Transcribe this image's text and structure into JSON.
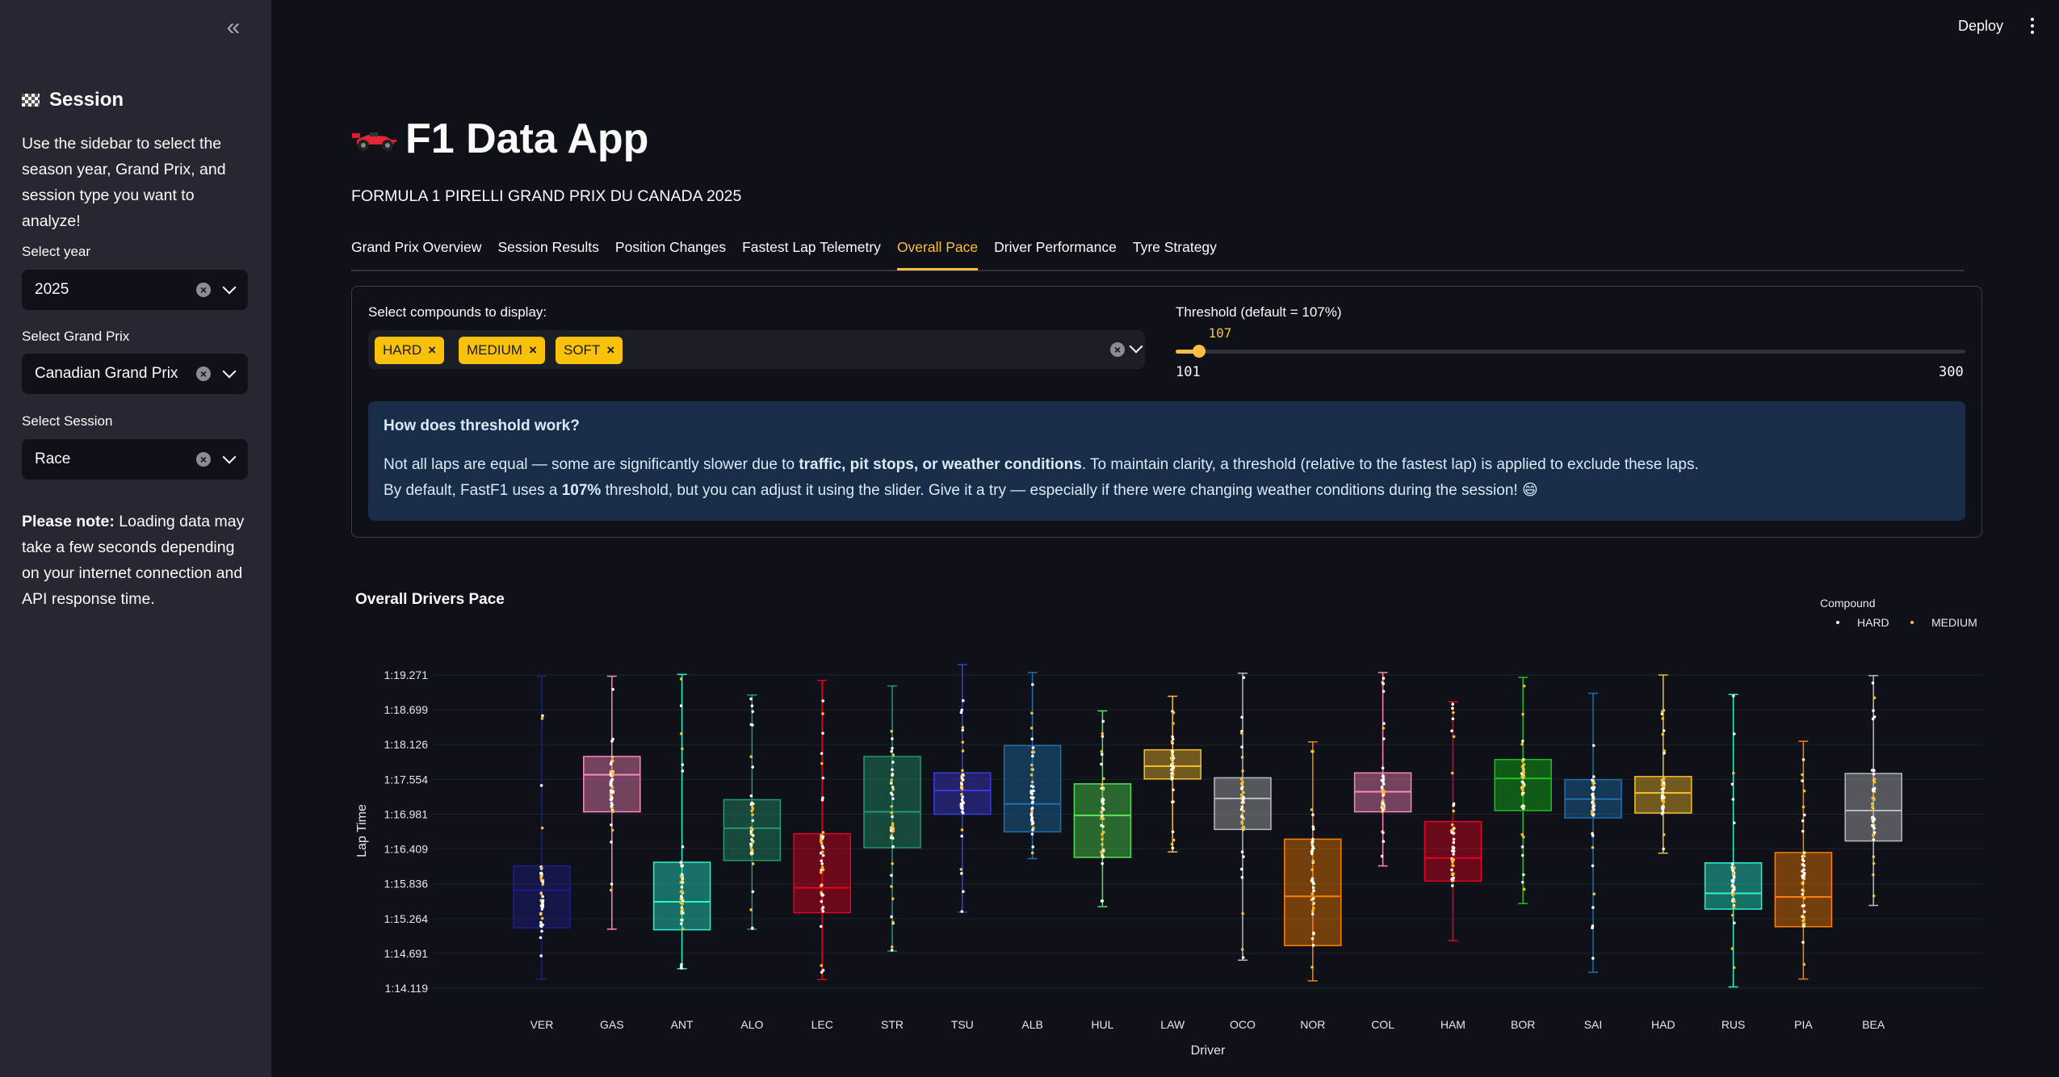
{
  "sidebar": {
    "heading": "Session",
    "intro": "Use the sidebar to select the season year, Grand Prix, and session type you want to analyze!",
    "year": {
      "label": "Select year",
      "value": "2025"
    },
    "grand_prix": {
      "label": "Select Grand Prix",
      "value": "Canadian Grand Prix"
    },
    "session": {
      "label": "Select Session",
      "value": "Race"
    },
    "note_bold": "Please note:",
    "note_text": " Loading data may take a few seconds depending on your internet connection and API response time."
  },
  "topbar": {
    "deploy": "Deploy"
  },
  "main": {
    "title": "F1 Data App",
    "subtitle": "FORMULA 1 PIRELLI GRAND PRIX DU CANADA 2025",
    "tabs": [
      {
        "label": "Grand Prix Overview",
        "active": false
      },
      {
        "label": "Session Results",
        "active": false
      },
      {
        "label": "Position Changes",
        "active": false
      },
      {
        "label": "Fastest Lap Telemetry",
        "active": false
      },
      {
        "label": "Overall Pace",
        "active": true
      },
      {
        "label": "Driver Performance",
        "active": false
      },
      {
        "label": "Tyre Strategy",
        "active": false
      }
    ],
    "compounds": {
      "label": "Select compounds to display:",
      "selected": [
        "HARD",
        "MEDIUM",
        "SOFT"
      ]
    },
    "threshold": {
      "label": "Threshold (default = 107%)",
      "value": 107,
      "min": 101,
      "max": 300,
      "value_text": "107",
      "min_text": "101",
      "max_text": "300"
    },
    "info": {
      "title": "How does threshold work?",
      "l1_a": "Not all laps are equal — some are significantly slower due to ",
      "l1_b": "traffic, pit stops, or weather conditions",
      "l1_c": ". To maintain clarity, a threshold (relative to the fastest lap) is applied to exclude these laps.",
      "l2_a": "By default, FastF1 uses a ",
      "l2_b": "107%",
      "l2_c": " threshold, but you can adjust it using the slider. Give it a try — especially if there were changing weather conditions during the session! 😄"
    }
  },
  "chart_data": {
    "type": "box",
    "title": "Overall Drivers Pace",
    "xlabel": "Driver",
    "ylabel": "Lap Time",
    "legend_title": "Compound",
    "legend_position": "top-right",
    "legend": [
      {
        "name": "HARD",
        "color": "#ffffff"
      },
      {
        "name": "MEDIUM",
        "color": "#f7c02b"
      }
    ],
    "y_ticks": [
      "1:14.119",
      "1:14.691",
      "1:15.264",
      "1:15.836",
      "1:16.409",
      "1:16.981",
      "1:17.554",
      "1:18.126",
      "1:18.699",
      "1:19.271"
    ],
    "y_tick_seconds": [
      74.119,
      74.691,
      75.264,
      75.836,
      76.409,
      76.981,
      77.554,
      78.126,
      78.699,
      79.271
    ],
    "ylim_seconds": [
      74.1,
      79.4
    ],
    "grid": true,
    "drivers": [
      {
        "name": "VER",
        "color": "#1e1e8c",
        "min": 74.27,
        "q1": 75.11,
        "median": 75.73,
        "q3": 76.13,
        "max": 79.25
      },
      {
        "name": "GAS",
        "color": "#ff87bc",
        "min": 75.09,
        "q1": 77.02,
        "median": 77.63,
        "q3": 77.93,
        "max": 79.25
      },
      {
        "name": "ANT",
        "color": "#27f4d2",
        "min": 74.44,
        "q1": 75.08,
        "median": 75.54,
        "q3": 76.19,
        "max": 79.28
      },
      {
        "name": "ALO",
        "color": "#229971",
        "min": 75.09,
        "q1": 76.22,
        "median": 76.75,
        "q3": 77.22,
        "max": 78.94
      },
      {
        "name": "LEC",
        "color": "#e80020",
        "min": 74.26,
        "q1": 75.36,
        "median": 75.77,
        "q3": 76.66,
        "max": 79.18
      },
      {
        "name": "STR",
        "color": "#229971",
        "min": 74.73,
        "q1": 76.43,
        "median": 77.02,
        "q3": 77.93,
        "max": 79.09
      },
      {
        "name": "TSU",
        "color": "#3c3cdc",
        "min": 75.37,
        "q1": 76.98,
        "median": 77.37,
        "q3": 77.66,
        "max": 79.44
      },
      {
        "name": "ALB",
        "color": "#1e6fb0",
        "min": 76.25,
        "q1": 76.69,
        "median": 77.15,
        "q3": 78.11,
        "max": 79.31
      },
      {
        "name": "HUL",
        "color": "#52e252",
        "min": 75.46,
        "q1": 76.27,
        "median": 76.96,
        "q3": 77.48,
        "max": 78.68
      },
      {
        "name": "LAW",
        "color": "#f7c02b",
        "min": 76.36,
        "q1": 77.56,
        "median": 77.77,
        "q3": 78.04,
        "max": 78.92
      },
      {
        "name": "OCO",
        "color": "#b6babd",
        "min": 74.58,
        "q1": 76.73,
        "median": 77.24,
        "q3": 77.58,
        "max": 79.3
      },
      {
        "name": "NOR",
        "color": "#ff8000",
        "min": 74.24,
        "q1": 74.82,
        "median": 75.63,
        "q3": 76.57,
        "max": 78.17
      },
      {
        "name": "COL",
        "color": "#ff87bc",
        "min": 76.13,
        "q1": 77.02,
        "median": 77.35,
        "q3": 77.66,
        "max": 79.31
      },
      {
        "name": "HAM",
        "color": "#e80020",
        "min": 74.9,
        "q1": 75.88,
        "median": 76.26,
        "q3": 76.86,
        "max": 78.83
      },
      {
        "name": "BOR",
        "color": "#19c219",
        "min": 75.51,
        "q1": 77.04,
        "median": 77.57,
        "q3": 77.88,
        "max": 79.23
      },
      {
        "name": "SAI",
        "color": "#1e6fb0",
        "min": 74.38,
        "q1": 76.92,
        "median": 77.23,
        "q3": 77.55,
        "max": 78.97
      },
      {
        "name": "HAD",
        "color": "#f7c02b",
        "min": 76.34,
        "q1": 77.0,
        "median": 77.33,
        "q3": 77.6,
        "max": 79.27
      },
      {
        "name": "RUS",
        "color": "#27f4d2",
        "min": 74.14,
        "q1": 75.42,
        "median": 75.68,
        "q3": 76.18,
        "max": 78.95
      },
      {
        "name": "PIA",
        "color": "#ff8000",
        "min": 74.27,
        "q1": 75.13,
        "median": 75.62,
        "q3": 76.35,
        "max": 78.18
      },
      {
        "name": "BEA",
        "color": "#b6babd",
        "min": 75.48,
        "q1": 76.54,
        "median": 77.04,
        "q3": 77.65,
        "max": 79.26
      }
    ]
  }
}
